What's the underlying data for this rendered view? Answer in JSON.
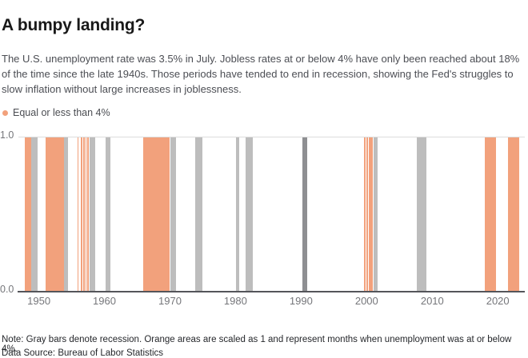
{
  "header": {
    "title": "A bumpy landing?",
    "subtitle": "The U.S. unemployment rate was 3.5% in July. Jobless rates at or below 4% have only been reached about 18% of the time since the late 1940s. Those periods have tended to end in recession, showing the Fed's struggles to slow inflation without large increases in joblessness."
  },
  "legend": {
    "label": "Equal or less than 4%",
    "dot_color": "#F2A17C"
  },
  "footer": {
    "note": "Note: Gray bars denote recession. Orange areas are scaled as 1 and represent months when unemployment was at or below 4%.",
    "source": "Data Source: Bureau of Labor Statistics"
  },
  "chart_data": {
    "type": "bar",
    "title": "A bumpy landing?",
    "xlabel": "",
    "ylabel": "",
    "x_domain": [
      1947,
      2024
    ],
    "x_ticks": [
      1950,
      1960,
      1970,
      1980,
      1990,
      2000,
      2010,
      2020
    ],
    "y_lim": [
      0,
      1
    ],
    "y_tick_labels": [
      "1.0",
      "0.0"
    ],
    "grid": "single light gridline at y=1.0; dark baseline at y=0.0",
    "legend_position": "top-left",
    "colors": {
      "low_unemployment": "#F2A17C",
      "recession": "#BDBDBD",
      "recession_dark_1990": "#8E8F92",
      "axis": "#54555a",
      "gridline": "#dcdcdc",
      "tick_text": "#75767a"
    },
    "series": [
      {
        "name": "Equal or less than 4%",
        "bar_type": "full-height-period",
        "value": 1,
        "color": "#F2A17C",
        "periods": [
          {
            "start": 1947.85,
            "end": 1948.85
          },
          {
            "start": 1951.0,
            "end": 1953.85
          },
          {
            "start": 1955.85,
            "end": 1956.03
          },
          {
            "start": 1956.37,
            "end": 1956.59
          },
          {
            "start": 1956.74,
            "end": 1956.96
          },
          {
            "start": 1957.08,
            "end": 1957.3
          },
          {
            "start": 1957.4,
            "end": 1957.58
          },
          {
            "start": 1965.95,
            "end": 1970.0
          },
          {
            "start": 1999.56,
            "end": 1999.88
          },
          {
            "start": 1999.96,
            "end": 2000.24
          },
          {
            "start": 2000.33,
            "end": 2000.94
          },
          {
            "start": 2018.0,
            "end": 2019.7
          },
          {
            "start": 2021.55,
            "end": 2023.3
          }
        ]
      },
      {
        "name": "Recession",
        "bar_type": "full-height-period",
        "value": 1,
        "color": "#BDBDBD",
        "periods": [
          {
            "start": 1948.85,
            "end": 1949.75
          },
          {
            "start": 1953.85,
            "end": 1954.5
          },
          {
            "start": 1957.75,
            "end": 1958.55
          },
          {
            "start": 1960.2,
            "end": 1960.9
          },
          {
            "start": 1970.0,
            "end": 1970.85
          },
          {
            "start": 1973.85,
            "end": 1974.95
          },
          {
            "start": 1980.05,
            "end": 1980.6
          },
          {
            "start": 1981.5,
            "end": 1982.6
          },
          {
            "start": 1990.2,
            "end": 1990.9,
            "color": "#8E8F92"
          },
          {
            "start": 2001.05,
            "end": 2001.7
          },
          {
            "start": 2007.7,
            "end": 2009.15
          }
        ]
      }
    ]
  }
}
